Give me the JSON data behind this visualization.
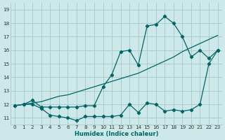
{
  "xlabel": "Humidex (Indice chaleur)",
  "bg_color": "#cce8e8",
  "grid_color": "#aacccc",
  "line_color": "#006666",
  "xlim": [
    -0.5,
    23.5
  ],
  "ylim": [
    10.5,
    19.5
  ],
  "xticks": [
    0,
    1,
    2,
    3,
    4,
    5,
    6,
    7,
    8,
    9,
    10,
    11,
    12,
    13,
    14,
    15,
    16,
    17,
    18,
    19,
    20,
    21,
    22,
    23
  ],
  "yticks": [
    11,
    12,
    13,
    14,
    15,
    16,
    17,
    18,
    19
  ],
  "line1_x": [
    0,
    1,
    2,
    3,
    4,
    5,
    6,
    7,
    8,
    9,
    10,
    11,
    12,
    13,
    14,
    15,
    16,
    17,
    18,
    19,
    20,
    21,
    22,
    23
  ],
  "line1_y": [
    11.9,
    12.0,
    12.3,
    11.8,
    11.8,
    11.8,
    11.8,
    11.8,
    11.9,
    11.9,
    13.3,
    14.2,
    15.9,
    16.0,
    14.9,
    17.8,
    17.9,
    18.5,
    18.0,
    17.0,
    15.5,
    16.0,
    15.4,
    16.0
  ],
  "line2_x": [
    0,
    1,
    2,
    3,
    4,
    5,
    6,
    7,
    8,
    9,
    10,
    11,
    12,
    13,
    14,
    15,
    16,
    17,
    18,
    19,
    20,
    21,
    22,
    23
  ],
  "line2_y": [
    11.9,
    12.0,
    12.0,
    11.7,
    11.2,
    11.1,
    11.0,
    10.8,
    11.1,
    11.1,
    11.1,
    11.1,
    11.2,
    12.0,
    11.4,
    12.1,
    12.0,
    11.5,
    11.6,
    11.5,
    11.6,
    12.0,
    15.0,
    16.0
  ],
  "line3_x": [
    0,
    1,
    2,
    3,
    4,
    5,
    6,
    7,
    8,
    9,
    10,
    11,
    12,
    13,
    14,
    15,
    16,
    17,
    18,
    19,
    20,
    21,
    22,
    23
  ],
  "line3_y": [
    11.9,
    12.0,
    12.1,
    12.2,
    12.4,
    12.6,
    12.7,
    12.9,
    13.1,
    13.3,
    13.5,
    13.7,
    13.9,
    14.1,
    14.3,
    14.6,
    14.9,
    15.2,
    15.5,
    15.9,
    16.2,
    16.5,
    16.8,
    17.1
  ]
}
